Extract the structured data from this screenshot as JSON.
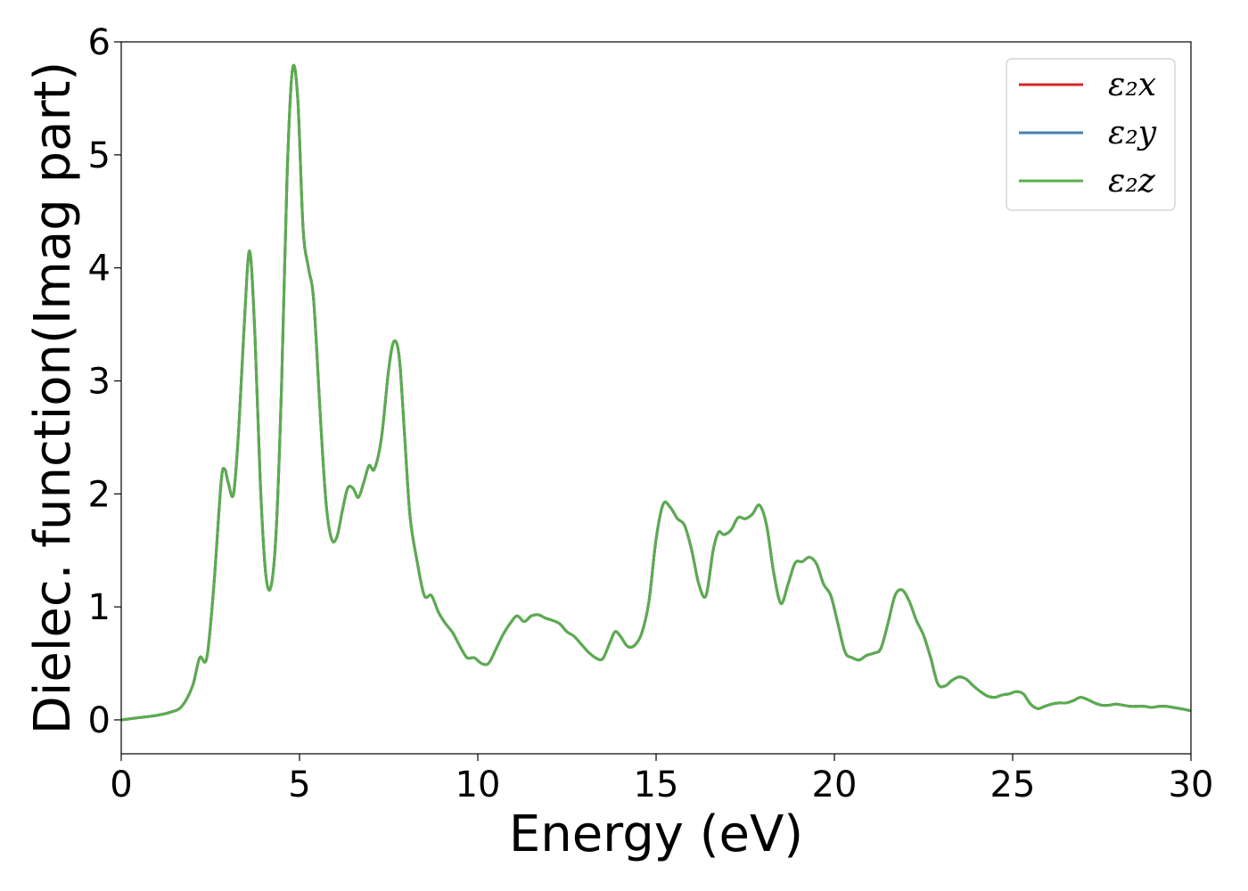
{
  "chart_data": {
    "type": "line",
    "title": "",
    "xlabel": "Energy (eV)",
    "ylabel": "Dielec. function(Imag part)",
    "xlim": [
      0,
      30
    ],
    "ylim": [
      -0.3,
      6.0
    ],
    "xticks": [
      0,
      5,
      10,
      15,
      20,
      25,
      30
    ],
    "yticks": [
      0,
      1,
      2,
      3,
      4,
      5,
      6
    ],
    "xtick_labels": [
      "0",
      "5",
      "10",
      "15",
      "20",
      "25",
      "30"
    ],
    "ytick_labels": [
      "0",
      "1",
      "2",
      "3",
      "4",
      "5",
      "6"
    ],
    "grid": false,
    "legend_position": "top-right",
    "x": [
      0.0,
      0.5,
      1.0,
      1.4,
      1.7,
      2.0,
      2.2,
      2.4,
      2.6,
      2.8,
      2.9,
      3.0,
      3.15,
      3.3,
      3.45,
      3.6,
      3.75,
      3.9,
      4.05,
      4.2,
      4.35,
      4.5,
      4.65,
      4.8,
      4.95,
      5.1,
      5.25,
      5.4,
      5.6,
      5.75,
      5.9,
      6.05,
      6.2,
      6.35,
      6.5,
      6.65,
      6.8,
      6.95,
      7.1,
      7.3,
      7.5,
      7.65,
      7.8,
      7.95,
      8.1,
      8.3,
      8.5,
      8.7,
      8.9,
      9.1,
      9.3,
      9.5,
      9.7,
      9.9,
      10.1,
      10.3,
      10.5,
      10.7,
      10.9,
      11.1,
      11.3,
      11.5,
      11.7,
      11.9,
      12.1,
      12.3,
      12.5,
      12.7,
      12.9,
      13.1,
      13.3,
      13.5,
      13.7,
      13.85,
      14.0,
      14.2,
      14.4,
      14.6,
      14.8,
      15.0,
      15.2,
      15.4,
      15.6,
      15.8,
      16.0,
      16.2,
      16.4,
      16.6,
      16.75,
      16.9,
      17.1,
      17.3,
      17.5,
      17.7,
      17.9,
      18.1,
      18.3,
      18.5,
      18.7,
      18.9,
      19.1,
      19.3,
      19.5,
      19.7,
      19.9,
      20.1,
      20.3,
      20.5,
      20.7,
      20.9,
      21.1,
      21.3,
      21.5,
      21.7,
      21.9,
      22.1,
      22.3,
      22.5,
      22.7,
      22.9,
      23.1,
      23.3,
      23.5,
      23.7,
      23.9,
      24.1,
      24.3,
      24.5,
      24.7,
      24.9,
      25.1,
      25.3,
      25.5,
      25.7,
      25.9,
      26.1,
      26.3,
      26.5,
      26.7,
      26.9,
      27.1,
      27.3,
      27.5,
      27.7,
      27.9,
      28.1,
      28.3,
      28.5,
      28.7,
      28.9,
      29.1,
      29.3,
      29.5,
      29.7,
      30.0
    ],
    "series": [
      {
        "name": "ε₂x",
        "color": "#d62728",
        "values": [
          0.0,
          0.02,
          0.04,
          0.07,
          0.12,
          0.3,
          0.55,
          0.55,
          1.2,
          2.1,
          2.22,
          2.1,
          2.0,
          2.6,
          3.5,
          4.15,
          3.4,
          2.1,
          1.3,
          1.18,
          1.7,
          3.0,
          4.8,
          5.75,
          5.5,
          4.35,
          4.0,
          3.7,
          2.6,
          1.9,
          1.6,
          1.62,
          1.85,
          2.05,
          2.05,
          1.97,
          2.1,
          2.25,
          2.22,
          2.5,
          3.1,
          3.35,
          3.2,
          2.5,
          1.8,
          1.4,
          1.1,
          1.1,
          0.95,
          0.85,
          0.77,
          0.65,
          0.55,
          0.55,
          0.5,
          0.5,
          0.62,
          0.75,
          0.85,
          0.92,
          0.87,
          0.92,
          0.93,
          0.9,
          0.88,
          0.85,
          0.78,
          0.74,
          0.67,
          0.6,
          0.55,
          0.54,
          0.68,
          0.78,
          0.74,
          0.65,
          0.66,
          0.77,
          1.05,
          1.6,
          1.91,
          1.88,
          1.78,
          1.72,
          1.5,
          1.2,
          1.1,
          1.5,
          1.66,
          1.64,
          1.68,
          1.79,
          1.78,
          1.82,
          1.9,
          1.72,
          1.3,
          1.03,
          1.2,
          1.39,
          1.4,
          1.44,
          1.38,
          1.2,
          1.1,
          0.85,
          0.6,
          0.55,
          0.53,
          0.57,
          0.59,
          0.63,
          0.85,
          1.1,
          1.15,
          1.05,
          0.88,
          0.75,
          0.55,
          0.32,
          0.3,
          0.35,
          0.38,
          0.36,
          0.3,
          0.25,
          0.21,
          0.2,
          0.22,
          0.23,
          0.25,
          0.23,
          0.14,
          0.1,
          0.12,
          0.14,
          0.15,
          0.15,
          0.17,
          0.2,
          0.18,
          0.15,
          0.13,
          0.13,
          0.14,
          0.13,
          0.12,
          0.12,
          0.12,
          0.11,
          0.12,
          0.12,
          0.11,
          0.1,
          0.08
        ]
      },
      {
        "name": "ε₂y",
        "color": "#4682b4",
        "values": [
          0.0,
          0.02,
          0.04,
          0.07,
          0.12,
          0.3,
          0.55,
          0.55,
          1.2,
          2.1,
          2.22,
          2.1,
          2.0,
          2.6,
          3.5,
          4.15,
          3.4,
          2.1,
          1.3,
          1.18,
          1.7,
          3.0,
          4.8,
          5.75,
          5.5,
          4.35,
          4.0,
          3.7,
          2.6,
          1.9,
          1.6,
          1.62,
          1.85,
          2.05,
          2.05,
          1.97,
          2.1,
          2.25,
          2.22,
          2.5,
          3.1,
          3.35,
          3.2,
          2.5,
          1.8,
          1.4,
          1.1,
          1.1,
          0.95,
          0.85,
          0.77,
          0.65,
          0.55,
          0.55,
          0.5,
          0.5,
          0.62,
          0.75,
          0.85,
          0.92,
          0.87,
          0.92,
          0.93,
          0.9,
          0.88,
          0.85,
          0.78,
          0.74,
          0.67,
          0.6,
          0.55,
          0.54,
          0.68,
          0.78,
          0.74,
          0.65,
          0.66,
          0.77,
          1.05,
          1.6,
          1.91,
          1.88,
          1.78,
          1.72,
          1.5,
          1.2,
          1.1,
          1.5,
          1.66,
          1.64,
          1.68,
          1.79,
          1.78,
          1.82,
          1.9,
          1.72,
          1.3,
          1.03,
          1.2,
          1.39,
          1.4,
          1.44,
          1.38,
          1.2,
          1.1,
          0.85,
          0.6,
          0.55,
          0.53,
          0.57,
          0.59,
          0.63,
          0.85,
          1.1,
          1.15,
          1.05,
          0.88,
          0.75,
          0.55,
          0.32,
          0.3,
          0.35,
          0.38,
          0.36,
          0.3,
          0.25,
          0.21,
          0.2,
          0.22,
          0.23,
          0.25,
          0.23,
          0.14,
          0.1,
          0.12,
          0.14,
          0.15,
          0.15,
          0.17,
          0.2,
          0.18,
          0.15,
          0.13,
          0.13,
          0.14,
          0.13,
          0.12,
          0.12,
          0.12,
          0.11,
          0.12,
          0.12,
          0.11,
          0.1,
          0.08
        ]
      },
      {
        "name": "ε₂z",
        "color": "#5aad4e",
        "values": [
          0.0,
          0.02,
          0.04,
          0.07,
          0.12,
          0.3,
          0.55,
          0.55,
          1.2,
          2.1,
          2.22,
          2.1,
          2.0,
          2.6,
          3.5,
          4.15,
          3.4,
          2.1,
          1.3,
          1.18,
          1.7,
          3.0,
          4.8,
          5.75,
          5.5,
          4.35,
          4.0,
          3.7,
          2.6,
          1.9,
          1.6,
          1.62,
          1.85,
          2.05,
          2.05,
          1.97,
          2.1,
          2.25,
          2.22,
          2.5,
          3.1,
          3.35,
          3.2,
          2.5,
          1.8,
          1.4,
          1.1,
          1.1,
          0.95,
          0.85,
          0.77,
          0.65,
          0.55,
          0.55,
          0.5,
          0.5,
          0.62,
          0.75,
          0.85,
          0.92,
          0.87,
          0.92,
          0.93,
          0.9,
          0.88,
          0.85,
          0.78,
          0.74,
          0.67,
          0.6,
          0.55,
          0.54,
          0.68,
          0.78,
          0.74,
          0.65,
          0.66,
          0.77,
          1.05,
          1.6,
          1.91,
          1.88,
          1.78,
          1.72,
          1.5,
          1.2,
          1.1,
          1.5,
          1.66,
          1.64,
          1.68,
          1.79,
          1.78,
          1.82,
          1.9,
          1.72,
          1.3,
          1.03,
          1.2,
          1.39,
          1.4,
          1.44,
          1.38,
          1.2,
          1.1,
          0.85,
          0.6,
          0.55,
          0.53,
          0.57,
          0.59,
          0.63,
          0.85,
          1.1,
          1.15,
          1.05,
          0.88,
          0.75,
          0.55,
          0.32,
          0.3,
          0.35,
          0.38,
          0.36,
          0.3,
          0.25,
          0.21,
          0.2,
          0.22,
          0.23,
          0.25,
          0.23,
          0.14,
          0.1,
          0.12,
          0.14,
          0.15,
          0.15,
          0.17,
          0.2,
          0.18,
          0.15,
          0.13,
          0.13,
          0.14,
          0.13,
          0.12,
          0.12,
          0.12,
          0.11,
          0.12,
          0.12,
          0.11,
          0.1,
          0.08
        ]
      }
    ]
  }
}
